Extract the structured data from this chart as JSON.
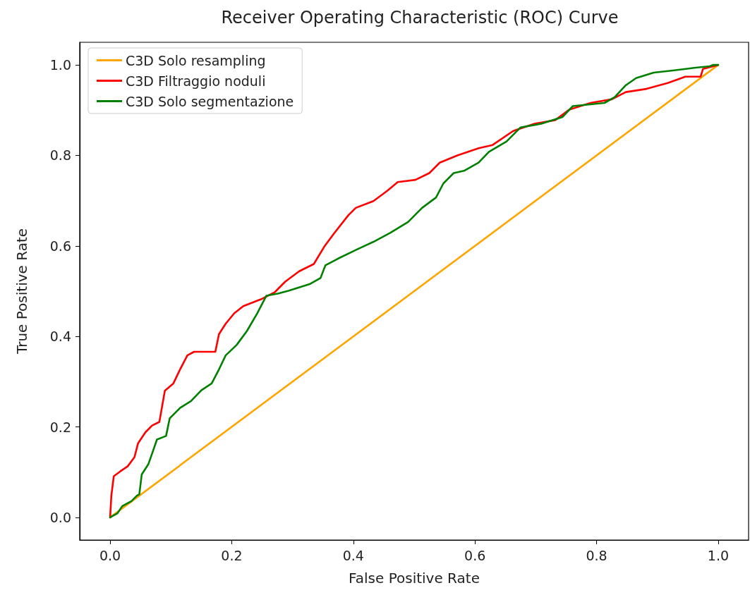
{
  "chart_data": {
    "type": "line",
    "title": "Receiver Operating Characteristic (ROC) Curve",
    "xlabel": "False Positive Rate",
    "ylabel": "True Positive Rate",
    "xlim": [
      -0.05,
      1.05
    ],
    "ylim": [
      -0.05,
      1.05
    ],
    "xticks": [
      {
        "value": 0,
        "label": "0.0"
      },
      {
        "value": 0.2,
        "label": "0.2"
      },
      {
        "value": 0.4,
        "label": "0.4"
      },
      {
        "value": 0.6,
        "label": "0.6"
      },
      {
        "value": 0.8,
        "label": "0.8"
      },
      {
        "value": 1,
        "label": "1.0"
      }
    ],
    "yticks": [
      {
        "value": 0,
        "label": "0.0"
      },
      {
        "value": 0.2,
        "label": "0.2"
      },
      {
        "value": 0.4,
        "label": "0.4"
      },
      {
        "value": 0.6,
        "label": "0.6"
      },
      {
        "value": 0.8,
        "label": "0.8"
      },
      {
        "value": 1,
        "label": "1.0"
      }
    ],
    "grid": false,
    "legend": "top left",
    "marker": "none",
    "line_style": "solid",
    "series": [
      {
        "name": "C3D Solo resampling",
        "color": "#ffa500",
        "x": [
          0,
          1
        ],
        "values": [
          0,
          1
        ]
      },
      {
        "name": "C3D Filtraggio noduli",
        "color": "#ff0000",
        "x": [
          0,
          0.002,
          0.006,
          0.017,
          0.029,
          0.04,
          0.046,
          0.058,
          0.069,
          0.081,
          0.09,
          0.104,
          0.115,
          0.127,
          0.138,
          0.173,
          0.179,
          0.19,
          0.204,
          0.219,
          0.248,
          0.271,
          0.288,
          0.311,
          0.335,
          0.352,
          0.369,
          0.392,
          0.404,
          0.433,
          0.456,
          0.473,
          0.502,
          0.525,
          0.542,
          0.571,
          0.606,
          0.629,
          0.663,
          0.698,
          0.732,
          0.755,
          0.79,
          0.825,
          0.848,
          0.882,
          0.917,
          0.946,
          0.971,
          0.975,
          1
        ],
        "values": [
          0,
          0.048,
          0.091,
          0.102,
          0.113,
          0.133,
          0.164,
          0.188,
          0.203,
          0.211,
          0.28,
          0.296,
          0.327,
          0.358,
          0.366,
          0.366,
          0.405,
          0.428,
          0.451,
          0.467,
          0.482,
          0.498,
          0.521,
          0.544,
          0.56,
          0.598,
          0.629,
          0.668,
          0.684,
          0.699,
          0.722,
          0.741,
          0.746,
          0.761,
          0.784,
          0.8,
          0.816,
          0.823,
          0.854,
          0.87,
          0.878,
          0.901,
          0.916,
          0.924,
          0.94,
          0.947,
          0.96,
          0.974,
          0.974,
          0.991,
          1
        ]
      },
      {
        "name": "C3D Solo segmentazione",
        "color": "#008000",
        "x": [
          0,
          0.012,
          0.02,
          0.035,
          0.044,
          0.048,
          0.052,
          0.063,
          0.069,
          0.077,
          0.092,
          0.098,
          0.115,
          0.133,
          0.15,
          0.167,
          0.179,
          0.19,
          0.208,
          0.225,
          0.242,
          0.257,
          0.277,
          0.294,
          0.329,
          0.346,
          0.354,
          0.375,
          0.404,
          0.433,
          0.461,
          0.49,
          0.513,
          0.536,
          0.548,
          0.565,
          0.582,
          0.606,
          0.623,
          0.652,
          0.675,
          0.709,
          0.744,
          0.761,
          0.813,
          0.83,
          0.848,
          0.865,
          0.894,
          0.928,
          0.963,
          0.986,
          0.992,
          1
        ],
        "values": [
          0,
          0.009,
          0.025,
          0.036,
          0.048,
          0.051,
          0.095,
          0.118,
          0.141,
          0.172,
          0.18,
          0.219,
          0.242,
          0.257,
          0.281,
          0.296,
          0.327,
          0.358,
          0.381,
          0.412,
          0.451,
          0.49,
          0.495,
          0.501,
          0.516,
          0.529,
          0.557,
          0.572,
          0.591,
          0.609,
          0.629,
          0.653,
          0.684,
          0.707,
          0.738,
          0.761,
          0.766,
          0.784,
          0.808,
          0.831,
          0.862,
          0.87,
          0.885,
          0.909,
          0.916,
          0.929,
          0.955,
          0.971,
          0.983,
          0.988,
          0.994,
          0.997,
          1,
          1
        ]
      }
    ]
  }
}
